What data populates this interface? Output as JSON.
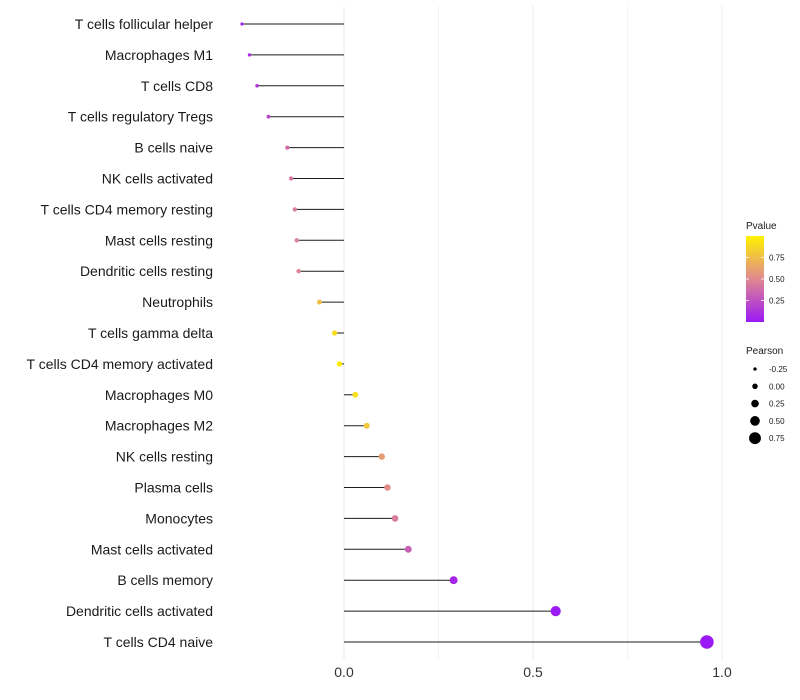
{
  "chart_data": {
    "type": "lollipop",
    "title": "",
    "xlabel": "",
    "ylabel": "",
    "xlim": [
      -0.27,
      1.0
    ],
    "x_ticks": [
      0.0,
      0.5,
      1.0
    ],
    "x_tick_labels": [
      "0.0",
      "0.5",
      "1.0"
    ],
    "grid": true,
    "color_scale": {
      "low": "#9b19f5",
      "mid": "#e08890",
      "high": "#fff200"
    },
    "points": [
      {
        "label": "T cells follicular helper",
        "pearson": -0.27,
        "pvalue": 0.05
      },
      {
        "label": "Macrophages M1",
        "pearson": -0.25,
        "pvalue": 0.08
      },
      {
        "label": "T cells CD8",
        "pearson": -0.23,
        "pvalue": 0.12
      },
      {
        "label": "T cells regulatory  Tregs",
        "pearson": -0.2,
        "pvalue": 0.22
      },
      {
        "label": "B cells naive",
        "pearson": -0.15,
        "pvalue": 0.38
      },
      {
        "label": "NK cells activated",
        "pearson": -0.14,
        "pvalue": 0.42
      },
      {
        "label": "T cells CD4 memory resting",
        "pearson": -0.13,
        "pvalue": 0.45
      },
      {
        "label": "Mast cells resting",
        "pearson": -0.125,
        "pvalue": 0.47
      },
      {
        "label": "Dendritic cells resting",
        "pearson": -0.12,
        "pvalue": 0.48
      },
      {
        "label": "Neutrophils",
        "pearson": -0.065,
        "pvalue": 0.75
      },
      {
        "label": "T cells gamma delta",
        "pearson": -0.025,
        "pvalue": 0.9
      },
      {
        "label": "T cells CD4 memory activated",
        "pearson": -0.012,
        "pvalue": 0.97
      },
      {
        "label": "Macrophages M0",
        "pearson": 0.03,
        "pvalue": 0.92
      },
      {
        "label": "Macrophages M2",
        "pearson": 0.06,
        "pvalue": 0.8
      },
      {
        "label": "NK cells resting",
        "pearson": 0.1,
        "pvalue": 0.6
      },
      {
        "label": "Plasma cells",
        "pearson": 0.115,
        "pvalue": 0.52
      },
      {
        "label": "Monocytes",
        "pearson": 0.135,
        "pvalue": 0.45
      },
      {
        "label": "Mast cells activated",
        "pearson": 0.17,
        "pvalue": 0.32
      },
      {
        "label": "B cells memory",
        "pearson": 0.29,
        "pvalue": 0.06
      },
      {
        "label": "Dendritic cells activated",
        "pearson": 0.56,
        "pvalue": 0.01
      },
      {
        "label": "T cells CD4 naive",
        "pearson": 0.96,
        "pvalue": 0.001
      }
    ],
    "legend": {
      "color_title": "Pvalue",
      "color_ticks": [
        0.25,
        0.5,
        0.75
      ],
      "color_tick_labels": [
        "0.25",
        "0.50",
        "0.75"
      ],
      "size_title": "Pearson",
      "size_values": [
        -0.25,
        0.0,
        0.25,
        0.5,
        0.75
      ],
      "size_labels": [
        "-0.25",
        "0.00",
        "0.25",
        "0.50",
        "0.75"
      ]
    }
  }
}
